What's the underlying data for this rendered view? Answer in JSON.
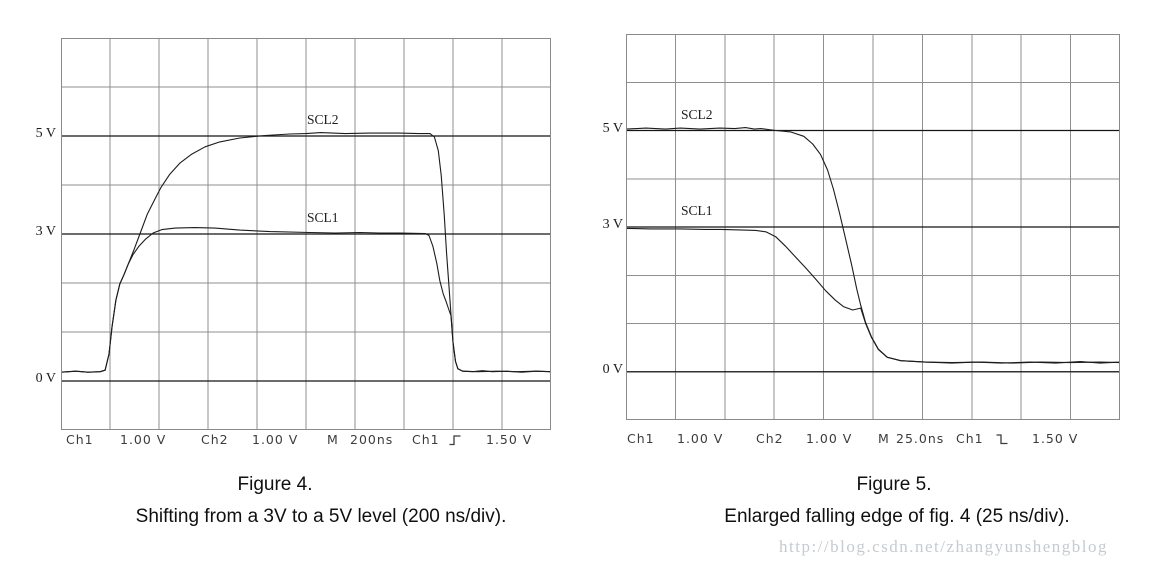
{
  "page": {
    "background": "#ffffff",
    "watermark": {
      "text": "http://blog.csdn.net/zhangyunshengblog",
      "color": "#c5cbd0"
    }
  },
  "colors": {
    "grid_line": "#8f8f8f",
    "plot_border": "#8a8a8a",
    "level_line": "#151515",
    "trace": "#1c1c1c",
    "readout_text": "#3c3c3c"
  },
  "figures": [
    {
      "name": "figure-4",
      "y_labels": [
        "5 V",
        "3 V",
        "0 V"
      ],
      "trace_labels": [
        "SCL2",
        "SCL1"
      ],
      "readout": {
        "ch1": "Ch1",
        "ch1_scale": "1.00 V",
        "ch2": "Ch2",
        "ch2_scale": "1.00 V",
        "time_base": "M",
        "time_scale": "200ns",
        "trigger_source": "Ch1",
        "trigger_edge": "rising",
        "trigger_level": "1.50 V"
      },
      "caption_title": "Figure 4.",
      "caption_subtitle": "Shifting from a 3V to a 5V level (200 ns/div)."
    },
    {
      "name": "figure-5",
      "y_labels": [
        "5 V",
        "3 V",
        "0 V"
      ],
      "trace_labels": [
        "SCL2",
        "SCL1"
      ],
      "readout": {
        "ch1": "Ch1",
        "ch1_scale": "1.00 V",
        "ch2": "Ch2",
        "ch2_scale": "1.00 V",
        "time_base": "M",
        "time_scale": "25.0ns",
        "trigger_source": "Ch1",
        "trigger_edge": "falling",
        "trigger_level": "1.50 V"
      },
      "caption_title": "Figure 5.",
      "caption_subtitle": "Enlarged falling edge of fig. 4 (25 ns/div)."
    }
  ],
  "chart_data": [
    {
      "type": "line",
      "title": "Figure 4.",
      "subtitle": "Shifting from a 3V to a 5V level (200 ns/div).",
      "x_unit": "ns",
      "x_per_div": 200,
      "x_divisions": 10,
      "x_range_ns": [
        0,
        2000
      ],
      "y_unit": "V",
      "volts_per_div": 1,
      "volts_top": 7,
      "volts_bottom": -1,
      "y_divisions": 8,
      "grid": true,
      "level_lines_volts": [
        5,
        3,
        0
      ],
      "y_tick_labels": [
        {
          "text": "5 V",
          "volts": 5
        },
        {
          "text": "3 V",
          "volts": 3
        },
        {
          "text": "0 V",
          "volts": 0
        }
      ],
      "series": [
        {
          "name": "SCL2",
          "points_div_volts": [
            [
              0,
              0.18
            ],
            [
              0.3,
              0.2
            ],
            [
              0.55,
              0.18
            ],
            [
              0.8,
              0.19
            ],
            [
              0.9,
              0.22
            ],
            [
              0.98,
              0.55
            ],
            [
              1.04,
              1.1
            ],
            [
              1.12,
              1.65
            ],
            [
              1.2,
              1.98
            ],
            [
              1.29,
              2.18
            ],
            [
              1.37,
              2.38
            ],
            [
              1.49,
              2.68
            ],
            [
              1.61,
              3.0
            ],
            [
              1.76,
              3.4
            ],
            [
              1.92,
              3.72
            ],
            [
              2.04,
              3.95
            ],
            [
              2.22,
              4.22
            ],
            [
              2.43,
              4.45
            ],
            [
              2.67,
              4.63
            ],
            [
              2.94,
              4.78
            ],
            [
              3.24,
              4.88
            ],
            [
              3.65,
              4.96
            ],
            [
              4.16,
              5.01
            ],
            [
              4.67,
              5.04
            ],
            [
              5.0,
              5.05
            ],
            [
              5.3,
              5.07
            ],
            [
              5.8,
              5.05
            ],
            [
              6.3,
              5.06
            ],
            [
              6.9,
              5.06
            ],
            [
              7.3,
              5.05
            ],
            [
              7.53,
              5.05
            ],
            [
              7.62,
              4.98
            ],
            [
              7.7,
              4.7
            ],
            [
              7.76,
              4.2
            ],
            [
              7.82,
              3.4
            ],
            [
              7.87,
              2.6
            ],
            [
              7.92,
              1.9
            ],
            [
              7.96,
              1.35
            ],
            [
              8.0,
              0.8
            ],
            [
              8.05,
              0.4
            ],
            [
              8.1,
              0.25
            ],
            [
              8.2,
              0.2
            ],
            [
              8.4,
              0.19
            ],
            [
              8.6,
              0.21
            ],
            [
              8.8,
              0.19
            ],
            [
              9.1,
              0.2
            ],
            [
              9.4,
              0.18
            ],
            [
              9.7,
              0.2
            ],
            [
              10,
              0.19
            ]
          ]
        },
        {
          "name": "SCL1",
          "points_div_volts": [
            [
              0,
              0.18
            ],
            [
              0.3,
              0.2
            ],
            [
              0.55,
              0.18
            ],
            [
              0.8,
              0.19
            ],
            [
              0.9,
              0.22
            ],
            [
              0.98,
              0.55
            ],
            [
              1.04,
              1.1
            ],
            [
              1.12,
              1.65
            ],
            [
              1.2,
              1.98
            ],
            [
              1.29,
              2.18
            ],
            [
              1.37,
              2.38
            ],
            [
              1.47,
              2.58
            ],
            [
              1.59,
              2.75
            ],
            [
              1.73,
              2.9
            ],
            [
              1.88,
              3.02
            ],
            [
              2.06,
              3.09
            ],
            [
              2.33,
              3.12
            ],
            [
              2.73,
              3.13
            ],
            [
              3.14,
              3.12
            ],
            [
              3.65,
              3.08
            ],
            [
              4.27,
              3.05
            ],
            [
              5.08,
              3.03
            ],
            [
              5.6,
              3.02
            ],
            [
              6.1,
              3.03
            ],
            [
              6.5,
              3.02
            ],
            [
              6.92,
              3.02
            ],
            [
              7.43,
              3.01
            ],
            [
              7.51,
              2.97
            ],
            [
              7.59,
              2.75
            ],
            [
              7.67,
              2.4
            ],
            [
              7.73,
              2.05
            ],
            [
              7.8,
              1.78
            ],
            [
              7.86,
              1.62
            ],
            [
              7.9,
              1.5
            ],
            [
              7.96,
              1.33
            ],
            [
              8.0,
              0.78
            ],
            [
              8.05,
              0.4
            ],
            [
              8.1,
              0.25
            ],
            [
              8.2,
              0.2
            ],
            [
              8.5,
              0.19
            ],
            [
              8.9,
              0.2
            ],
            [
              9.3,
              0.19
            ],
            [
              9.7,
              0.2
            ],
            [
              10,
              0.19
            ]
          ]
        }
      ]
    },
    {
      "type": "line",
      "title": "Figure 5.",
      "subtitle": "Enlarged falling edge of fig. 4 (25 ns/div).",
      "x_unit": "ns",
      "x_per_div": 25,
      "x_divisions": 10,
      "x_range_ns": [
        0,
        250
      ],
      "y_unit": "V",
      "volts_per_div": 1,
      "volts_top": 7,
      "volts_bottom": -1,
      "y_divisions": 8,
      "grid": true,
      "level_lines_volts": [
        5,
        3,
        0
      ],
      "y_tick_labels": [
        {
          "text": "5 V",
          "volts": 5
        },
        {
          "text": "3 V",
          "volts": 3
        },
        {
          "text": "0 V",
          "volts": 0
        }
      ],
      "series": [
        {
          "name": "SCL2",
          "points_div_volts": [
            [
              0,
              5.03
            ],
            [
              0.4,
              5.05
            ],
            [
              0.8,
              5.03
            ],
            [
              1.1,
              5.05
            ],
            [
              1.5,
              5.03
            ],
            [
              1.9,
              5.05
            ],
            [
              2.2,
              5.04
            ],
            [
              2.42,
              5.06
            ],
            [
              2.6,
              5.03
            ],
            [
              2.73,
              5.04
            ],
            [
              3.03,
              5.0
            ],
            [
              3.33,
              4.97
            ],
            [
              3.6,
              4.88
            ],
            [
              3.78,
              4.72
            ],
            [
              3.94,
              4.5
            ],
            [
              4.08,
              4.18
            ],
            [
              4.2,
              3.78
            ],
            [
              4.32,
              3.3
            ],
            [
              4.44,
              2.78
            ],
            [
              4.57,
              2.2
            ],
            [
              4.67,
              1.72
            ],
            [
              4.75,
              1.38
            ],
            [
              4.85,
              1.02
            ],
            [
              4.97,
              0.72
            ],
            [
              5.11,
              0.47
            ],
            [
              5.29,
              0.3
            ],
            [
              5.56,
              0.23
            ],
            [
              6.06,
              0.2
            ],
            [
              6.6,
              0.18
            ],
            [
              7.07,
              0.2
            ],
            [
              7.6,
              0.18
            ],
            [
              8.18,
              0.2
            ],
            [
              8.7,
              0.18
            ],
            [
              9.2,
              0.21
            ],
            [
              9.6,
              0.18
            ],
            [
              10,
              0.2
            ]
          ]
        },
        {
          "name": "SCL1",
          "points_div_volts": [
            [
              0,
              2.97
            ],
            [
              0.5,
              2.96
            ],
            [
              1.1,
              2.96
            ],
            [
              1.6,
              2.95
            ],
            [
              1.92,
              2.95
            ],
            [
              2.3,
              2.94
            ],
            [
              2.63,
              2.93
            ],
            [
              2.83,
              2.9
            ],
            [
              3.03,
              2.8
            ],
            [
              3.23,
              2.6
            ],
            [
              3.43,
              2.38
            ],
            [
              3.64,
              2.15
            ],
            [
              3.84,
              1.92
            ],
            [
              4.04,
              1.68
            ],
            [
              4.24,
              1.48
            ],
            [
              4.4,
              1.35
            ],
            [
              4.59,
              1.28
            ],
            [
              4.75,
              1.32
            ],
            [
              4.85,
              1.0
            ],
            [
              4.97,
              0.71
            ],
            [
              5.11,
              0.46
            ],
            [
              5.29,
              0.3
            ],
            [
              5.56,
              0.23
            ],
            [
              6.06,
              0.2
            ],
            [
              6.6,
              0.19
            ],
            [
              7.2,
              0.2
            ],
            [
              7.8,
              0.18
            ],
            [
              8.4,
              0.2
            ],
            [
              9.0,
              0.19
            ],
            [
              9.6,
              0.2
            ],
            [
              10,
              0.19
            ]
          ]
        }
      ]
    }
  ]
}
